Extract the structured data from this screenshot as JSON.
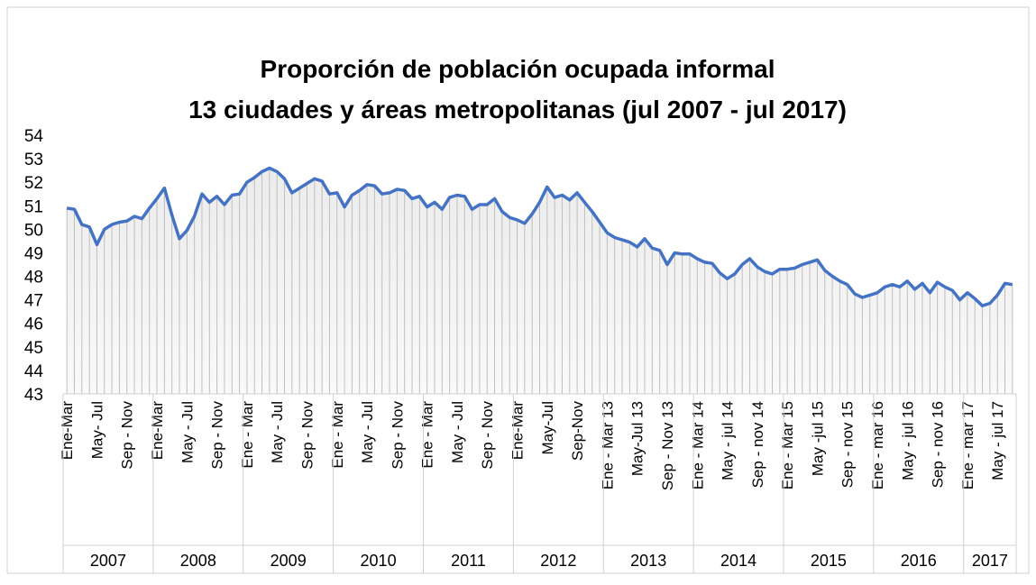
{
  "chart_data": {
    "type": "line",
    "title": "Proporción de población ocupada informal",
    "subtitle": "13 ciudades y áreas metropolitanas (jul 2007 - jul 2017)",
    "categories": [
      "Ene-Mar",
      null,
      null,
      null,
      "May- Jul",
      null,
      null,
      null,
      "Sep - Nov",
      null,
      null,
      null,
      "Ene-Mar",
      null,
      null,
      null,
      "May - Jul",
      null,
      null,
      null,
      "Sep - Nov",
      null,
      null,
      null,
      "Ene - Mar",
      null,
      null,
      null,
      "May - Jul",
      null,
      null,
      null,
      "Sep - Nov",
      null,
      null,
      null,
      "Ene - Mar",
      null,
      null,
      null,
      "May - Jul",
      null,
      null,
      null,
      "Sep - Nov",
      null,
      null,
      null,
      "Ene - Mar",
      null,
      null,
      null,
      "May - Jul",
      null,
      null,
      null,
      "Sep - Nov",
      null,
      null,
      null,
      "Ene-Mar",
      null,
      null,
      null,
      "May-Jul",
      null,
      null,
      null,
      "Sep-Nov",
      null,
      null,
      null,
      "Ene - Mar 13",
      null,
      null,
      null,
      "May-Jul 13",
      null,
      null,
      null,
      "Sep - Nov 13",
      null,
      null,
      null,
      "Ene - Mar 14",
      null,
      null,
      null,
      "May - jul 14",
      null,
      null,
      null,
      "Sep - nov 14",
      null,
      null,
      null,
      "Ene - Mar 15",
      null,
      null,
      null,
      "May -jul 15",
      null,
      null,
      null,
      "Sep - nov 15",
      null,
      null,
      null,
      "Ene - mar 16",
      null,
      null,
      null,
      "May - jul 16",
      null,
      null,
      null,
      "Sep - nov 16",
      null,
      null,
      null,
      "Ene - mar 17",
      null,
      null,
      null,
      "May - jul 17",
      null,
      null
    ],
    "years": [
      "2007",
      "2008",
      "2009",
      "2010",
      "2011",
      "2012",
      "2013",
      "2014",
      "2015",
      "2016",
      "2017"
    ],
    "series": [
      {
        "color": "#4472c4",
        "values": [
          50.9,
          50.85,
          50.2,
          50.1,
          49.35,
          50.0,
          50.2,
          50.3,
          50.35,
          50.55,
          50.45,
          50.9,
          51.3,
          51.75,
          50.6,
          49.6,
          49.95,
          50.55,
          51.5,
          51.15,
          51.4,
          51.05,
          51.45,
          51.5,
          52.0,
          52.2,
          52.45,
          52.6,
          52.45,
          52.15,
          51.55,
          51.75,
          51.95,
          52.15,
          52.05,
          51.5,
          51.55,
          50.95,
          51.45,
          51.65,
          51.9,
          51.85,
          51.5,
          51.55,
          51.7,
          51.65,
          51.3,
          51.4,
          50.95,
          51.15,
          50.85,
          51.35,
          51.45,
          51.4,
          50.85,
          51.05,
          51.05,
          51.3,
          50.75,
          50.5,
          50.4,
          50.25,
          50.65,
          51.15,
          51.8,
          51.35,
          51.45,
          51.25,
          51.55,
          51.15,
          50.75,
          50.3,
          49.85,
          49.65,
          49.55,
          49.45,
          49.25,
          49.6,
          49.2,
          49.1,
          48.5,
          49.0,
          48.95,
          48.95,
          48.75,
          48.6,
          48.55,
          48.15,
          47.9,
          48.1,
          48.5,
          48.75,
          48.4,
          48.2,
          48.1,
          48.3,
          48.3,
          48.35,
          48.5,
          48.6,
          48.7,
          48.25,
          48.0,
          47.8,
          47.65,
          47.25,
          47.1,
          47.2,
          47.3,
          47.55,
          47.65,
          47.55,
          47.8,
          47.45,
          47.7,
          47.3,
          47.75,
          47.55,
          47.4,
          47.0,
          47.3,
          47.05,
          46.75,
          46.85,
          47.2,
          47.7,
          47.65
        ]
      }
    ],
    "ylim": [
      43,
      54
    ],
    "yticks": [
      43,
      44,
      45,
      46,
      47,
      48,
      49,
      50,
      51,
      52,
      53,
      54
    ]
  }
}
